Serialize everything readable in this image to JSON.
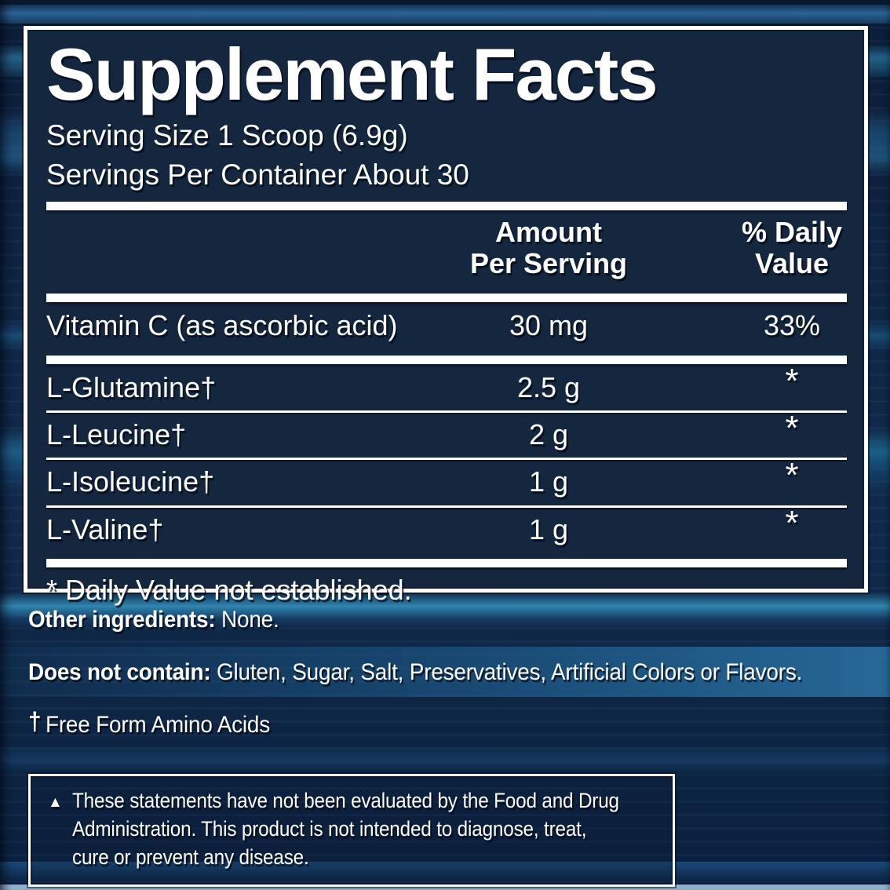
{
  "panel": {
    "title": "Supplement Facts",
    "serving_size": "Serving Size 1 Scoop (6.9g)",
    "servings_per_container": "Servings Per Container About 30",
    "columns": {
      "amount": [
        "Amount",
        "Per Serving"
      ],
      "daily_value": [
        "% Daily",
        "Value"
      ]
    },
    "rows": [
      {
        "name": "Vitamin C (as ascorbic acid)",
        "amount": "30 mg",
        "daily_value": "33%"
      },
      {
        "name": "L-Glutamine†",
        "amount": "2.5 g",
        "daily_value": "*"
      },
      {
        "name": "L-Leucine†",
        "amount": "2 g",
        "daily_value": "*"
      },
      {
        "name": "L-Isoleucine†",
        "amount": "1 g",
        "daily_value": "*"
      },
      {
        "name": "L-Valine†",
        "amount": "1 g",
        "daily_value": "*"
      }
    ],
    "footnote": "* Daily Value not established."
  },
  "other_ingredients": {
    "label": "Other ingredients:",
    "value": "None."
  },
  "does_not_contain": {
    "label": "Does not contain:",
    "value": "Gluten, Sugar, Salt, Preservatives, Artificial Colors or Flavors."
  },
  "amino_note": {
    "symbol": "†",
    "text": "Free Form Amino Acids"
  },
  "disclaimer": {
    "bullet": "▲",
    "lines": [
      "These statements have not been evaluated by the Food and Drug",
      "Administration. This product is not intended to diagnose, treat,",
      "cure or prevent any disease."
    ]
  },
  "colors": {
    "label_background": "#15273f",
    "page_background": "#0d2138",
    "rule": "#ffffff",
    "streak_teal": "#2f86b0",
    "text": "#ffffff"
  }
}
